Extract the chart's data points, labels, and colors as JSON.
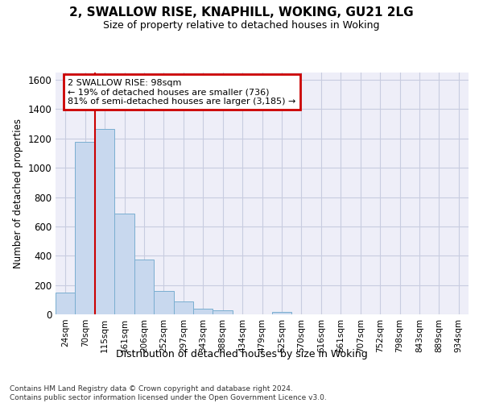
{
  "title_line1": "2, SWALLOW RISE, KNAPHILL, WOKING, GU21 2LG",
  "title_line2": "Size of property relative to detached houses in Woking",
  "xlabel": "Distribution of detached houses by size in Woking",
  "ylabel": "Number of detached properties",
  "categories": [
    "24sqm",
    "70sqm",
    "115sqm",
    "161sqm",
    "206sqm",
    "252sqm",
    "297sqm",
    "343sqm",
    "388sqm",
    "434sqm",
    "479sqm",
    "525sqm",
    "570sqm",
    "616sqm",
    "661sqm",
    "707sqm",
    "752sqm",
    "798sqm",
    "843sqm",
    "889sqm",
    "934sqm"
  ],
  "bar_values": [
    148,
    1175,
    1265,
    685,
    375,
    160,
    90,
    38,
    25,
    0,
    0,
    14,
    0,
    0,
    0,
    0,
    0,
    0,
    0,
    0,
    0
  ],
  "bar_color": "#c8d8ee",
  "bar_edge_color": "#7aaed0",
  "ylim": [
    0,
    1650
  ],
  "yticks": [
    0,
    200,
    400,
    600,
    800,
    1000,
    1200,
    1400,
    1600
  ],
  "vline_x": 1.5,
  "annotation_text_line1": "2 SWALLOW RISE: 98sqm",
  "annotation_text_line2": "← 19% of detached houses are smaller (736)",
  "annotation_text_line3": "81% of semi-detached houses are larger (3,185) →",
  "annotation_box_color": "#ffffff",
  "annotation_box_edge_color": "#cc0000",
  "vline_color": "#cc0000",
  "grid_color": "#c8cce0",
  "background_color": "#eeeef8",
  "footer_line1": "Contains HM Land Registry data © Crown copyright and database right 2024.",
  "footer_line2": "Contains public sector information licensed under the Open Government Licence v3.0."
}
